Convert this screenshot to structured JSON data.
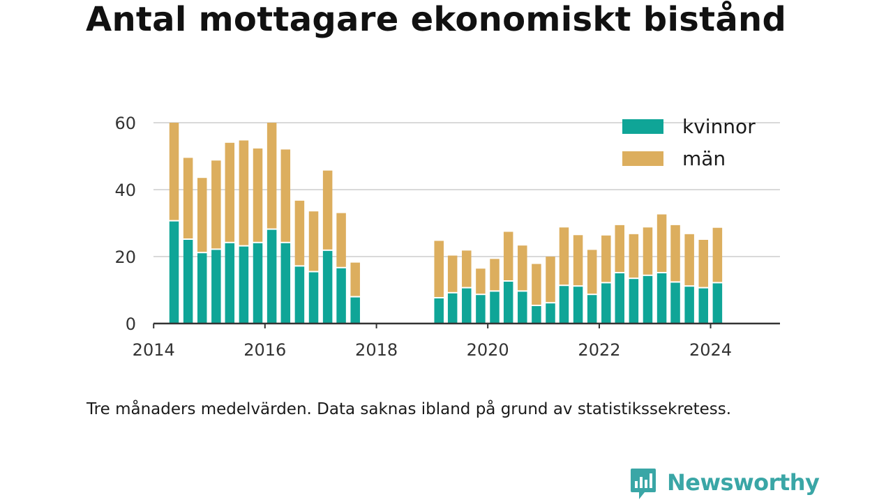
{
  "title": "Antal mottagare ekonomiskt bistånd",
  "note": "Tre månaders medelvärden. Data saknas ibland på grund av statistikssekretess.",
  "brand": {
    "name": "Newsworthy",
    "icon": "newsworthy-logo-icon"
  },
  "colors": {
    "kvinnor": "#0fa597",
    "man": "#dcae5e",
    "grid": "#d9d9d9",
    "axis": "#333333"
  },
  "chart_data": {
    "type": "bar",
    "stacked": true,
    "title": "Antal mottagare ekonomiskt bistånd",
    "xlabel": "",
    "ylabel": "",
    "ylim": [
      0,
      60
    ],
    "yticks": [
      "0",
      "20",
      "40",
      "60"
    ],
    "xticks": [
      "2014",
      "2016",
      "2018",
      "2020",
      "2022",
      "2024"
    ],
    "xlim": [
      "2013-12-31",
      "2025-03-31"
    ],
    "grid": true,
    "legend_position": "top-right",
    "dates": [
      "2014-05-15",
      "2014-08-15",
      "2014-11-15",
      "2015-02-15",
      "2015-05-15",
      "2015-08-15",
      "2015-11-15",
      "2016-02-15",
      "2016-05-15",
      "2016-08-15",
      "2016-11-15",
      "2017-02-15",
      "2017-05-15",
      "2017-08-15",
      "2019-02-15",
      "2019-05-15",
      "2019-08-15",
      "2019-11-15",
      "2020-02-15",
      "2020-05-15",
      "2020-08-15",
      "2020-11-15",
      "2021-02-15",
      "2021-05-15",
      "2021-08-15",
      "2021-11-15",
      "2022-02-15",
      "2022-05-15",
      "2022-08-15",
      "2022-11-15",
      "2023-02-15",
      "2023-05-15",
      "2023-08-15",
      "2023-11-15",
      "2024-02-15"
    ],
    "series": [
      {
        "name": "kvinnor",
        "color": "#0fa597",
        "values": [
          30.5,
          25,
          21,
          22,
          24,
          23,
          24,
          28,
          24,
          17,
          15.3,
          21.7,
          16.5,
          7.8,
          7.5,
          9,
          10.5,
          8.5,
          9.5,
          12.5,
          9.5,
          5.2,
          6,
          11.2,
          11,
          8.5,
          12,
          15,
          13.3,
          14.2,
          15,
          12.2,
          11,
          10.5,
          12
        ]
      },
      {
        "name": "män",
        "color": "#dcae5e",
        "values": [
          29.5,
          24.5,
          22.5,
          26.7,
          30,
          31.7,
          28.3,
          32,
          28,
          19.7,
          18.2,
          24,
          16.5,
          10.4,
          17.2,
          11.3,
          11.3,
          7.9,
          9.8,
          14.9,
          13.8,
          12.6,
          14,
          17.5,
          15.4,
          13.5,
          14.3,
          14.4,
          13.4,
          14.5,
          17.6,
          17.2,
          15.7,
          14.5,
          16.6
        ]
      }
    ]
  }
}
